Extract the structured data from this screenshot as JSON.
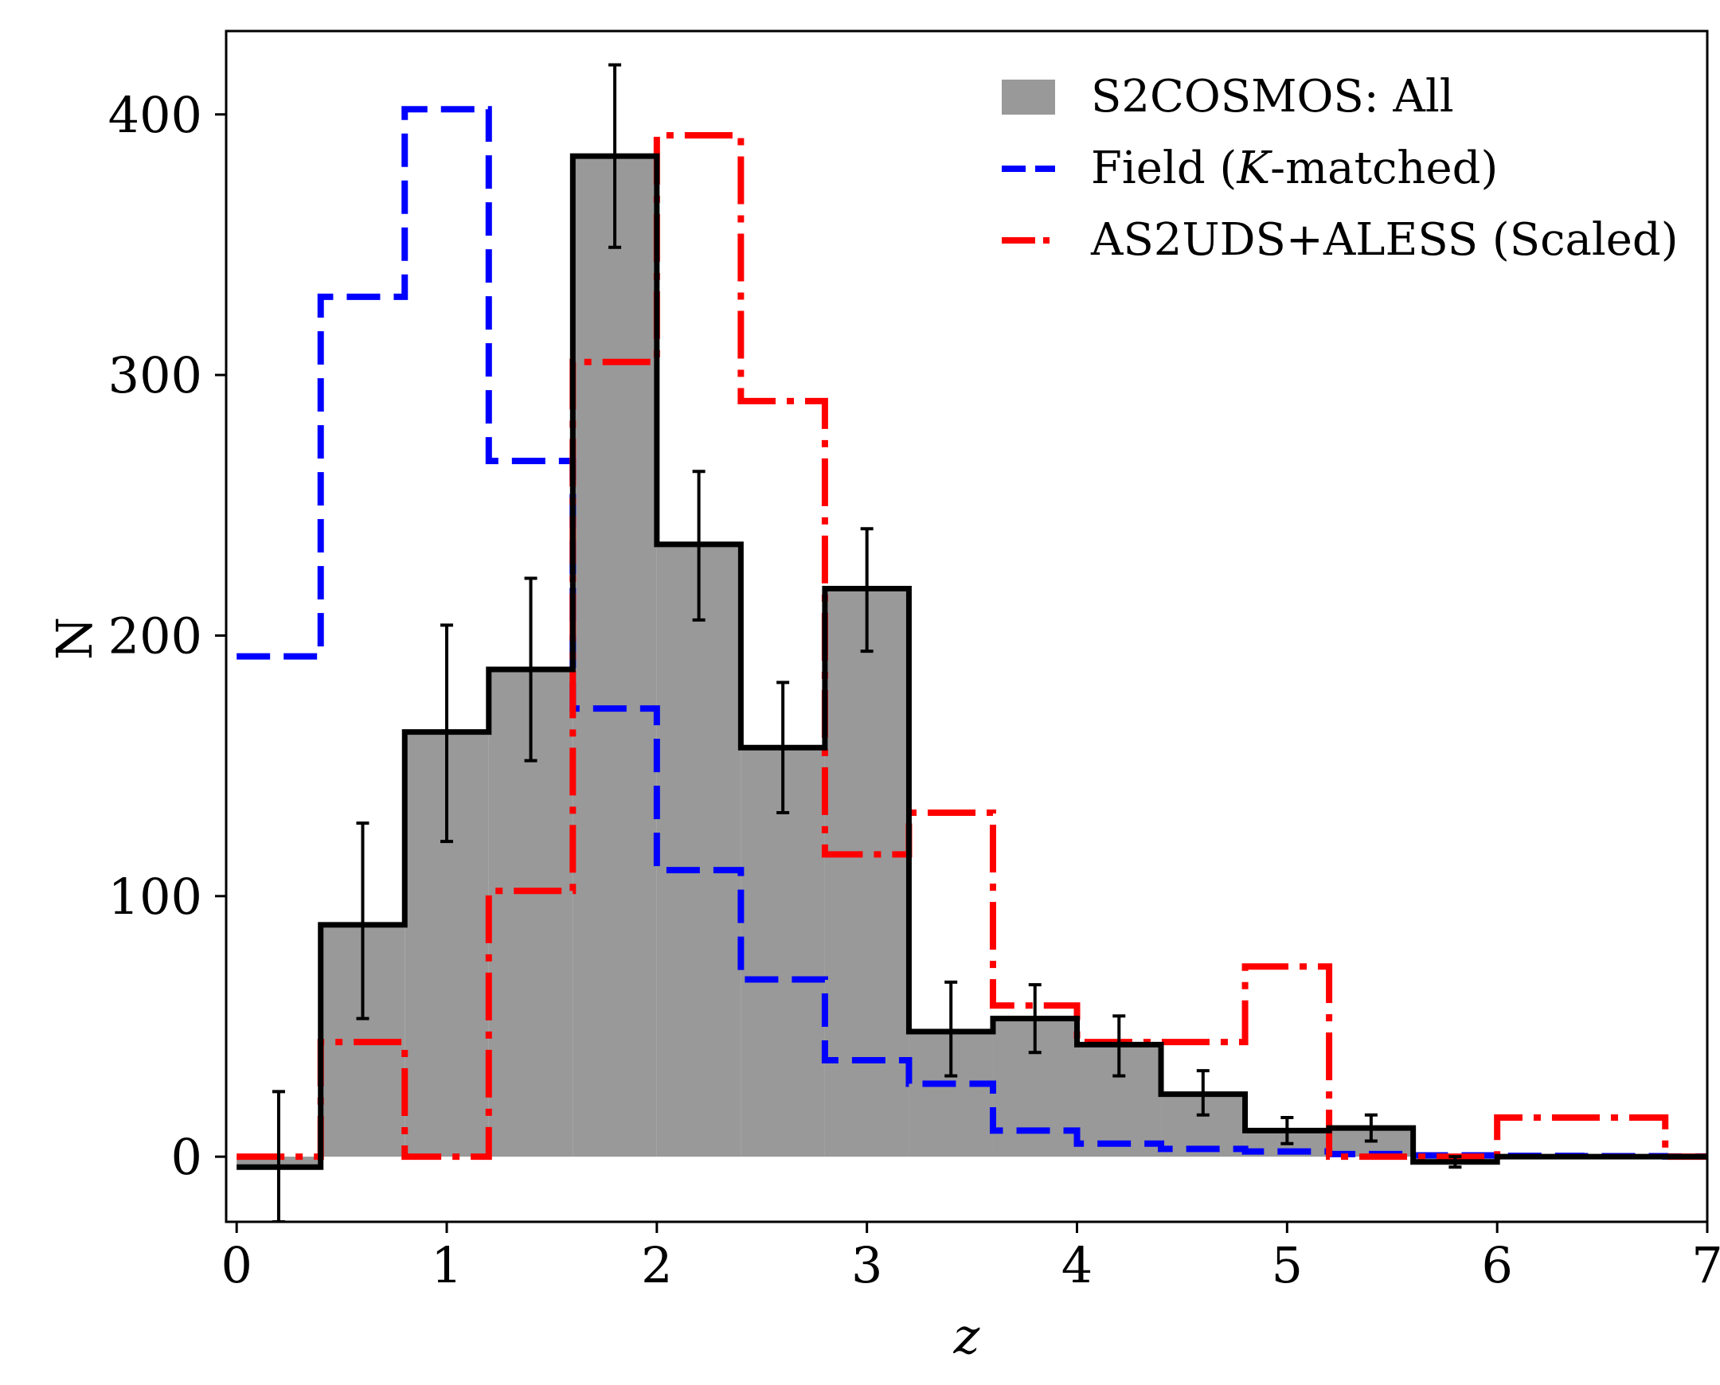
{
  "chart_data": {
    "type": "histogram",
    "title": "",
    "xlabel": "z",
    "ylabel": "N",
    "xlim": [
      -0.05,
      7.0
    ],
    "ylim": [
      -25,
      432
    ],
    "xticks": [
      0,
      1,
      2,
      3,
      4,
      5,
      6,
      7
    ],
    "xtick_labels": [
      "0",
      "1",
      "2",
      "3",
      "4",
      "5",
      "6",
      "7"
    ],
    "yticks": [
      0,
      100,
      200,
      300,
      400
    ],
    "ytick_labels": [
      "0",
      "100",
      "200",
      "300",
      "400"
    ],
    "grid": false,
    "legend_position": "top-right",
    "series": [
      {
        "name": "S2COSMOS: All",
        "kind": "filled-step-with-errorbars",
        "fill_color": "#999999",
        "edge_color": "#000000",
        "bin_edges": [
          0.0,
          0.4,
          0.8,
          1.2,
          1.6,
          2.0,
          2.4,
          2.8,
          3.2,
          3.6,
          4.0,
          4.4,
          4.8,
          5.2,
          5.6,
          6.0,
          6.4,
          6.8,
          7.0
        ],
        "values": [
          -4,
          89,
          163,
          187,
          384,
          235,
          157,
          218,
          48,
          53,
          43,
          24,
          10,
          11,
          -2,
          0,
          0,
          0
        ],
        "errorbars": [
          {
            "x": 0.2,
            "y": -4,
            "lo": -25,
            "hi": 25
          },
          {
            "x": 0.6,
            "y": 89,
            "lo": 53,
            "hi": 128
          },
          {
            "x": 1.0,
            "y": 163,
            "lo": 121,
            "hi": 204
          },
          {
            "x": 1.4,
            "y": 187,
            "lo": 152,
            "hi": 222
          },
          {
            "x": 1.8,
            "y": 384,
            "lo": 349,
            "hi": 419
          },
          {
            "x": 2.2,
            "y": 235,
            "lo": 206,
            "hi": 263
          },
          {
            "x": 2.6,
            "y": 157,
            "lo": 132,
            "hi": 182
          },
          {
            "x": 3.0,
            "y": 218,
            "lo": 194,
            "hi": 241
          },
          {
            "x": 3.4,
            "y": 48,
            "lo": 31,
            "hi": 67
          },
          {
            "x": 3.8,
            "y": 53,
            "lo": 40,
            "hi": 66
          },
          {
            "x": 4.2,
            "y": 43,
            "lo": 31,
            "hi": 54
          },
          {
            "x": 4.6,
            "y": 24,
            "lo": 16,
            "hi": 33
          },
          {
            "x": 5.0,
            "y": 10,
            "lo": 5,
            "hi": 15
          },
          {
            "x": 5.4,
            "y": 11,
            "lo": 6,
            "hi": 16
          },
          {
            "x": 5.8,
            "y": -2,
            "lo": -4,
            "hi": 0
          }
        ]
      },
      {
        "name": "Field (K-matched)",
        "legend_parts": [
          "Field (",
          "K",
          "-matched)"
        ],
        "kind": "step-dashed",
        "color": "#0000ff",
        "bin_edges": [
          0.0,
          0.4,
          0.8,
          1.2,
          1.6,
          2.0,
          2.4,
          2.8,
          3.2,
          3.6,
          4.0,
          4.4,
          4.8,
          5.2,
          5.6,
          6.0,
          6.4,
          6.8,
          7.0
        ],
        "values": [
          192,
          330,
          402,
          267,
          172,
          110,
          68,
          37,
          28,
          10,
          5,
          3,
          2,
          1,
          0.5,
          0.3,
          0.2,
          0.1
        ]
      },
      {
        "name": "AS2UDS+ALESS (Scaled)",
        "kind": "step-dashdot",
        "color": "#ff0000",
        "bin_edges": [
          0.0,
          0.4,
          0.8,
          1.2,
          1.6,
          2.0,
          2.4,
          2.8,
          3.2,
          3.6,
          4.0,
          4.4,
          4.8,
          5.2,
          5.6,
          6.0,
          6.4,
          6.8,
          7.0
        ],
        "values": [
          0,
          44,
          0,
          102,
          305,
          392,
          290,
          116,
          132,
          58,
          44,
          44,
          73,
          0,
          0,
          15,
          15,
          0
        ]
      }
    ]
  }
}
